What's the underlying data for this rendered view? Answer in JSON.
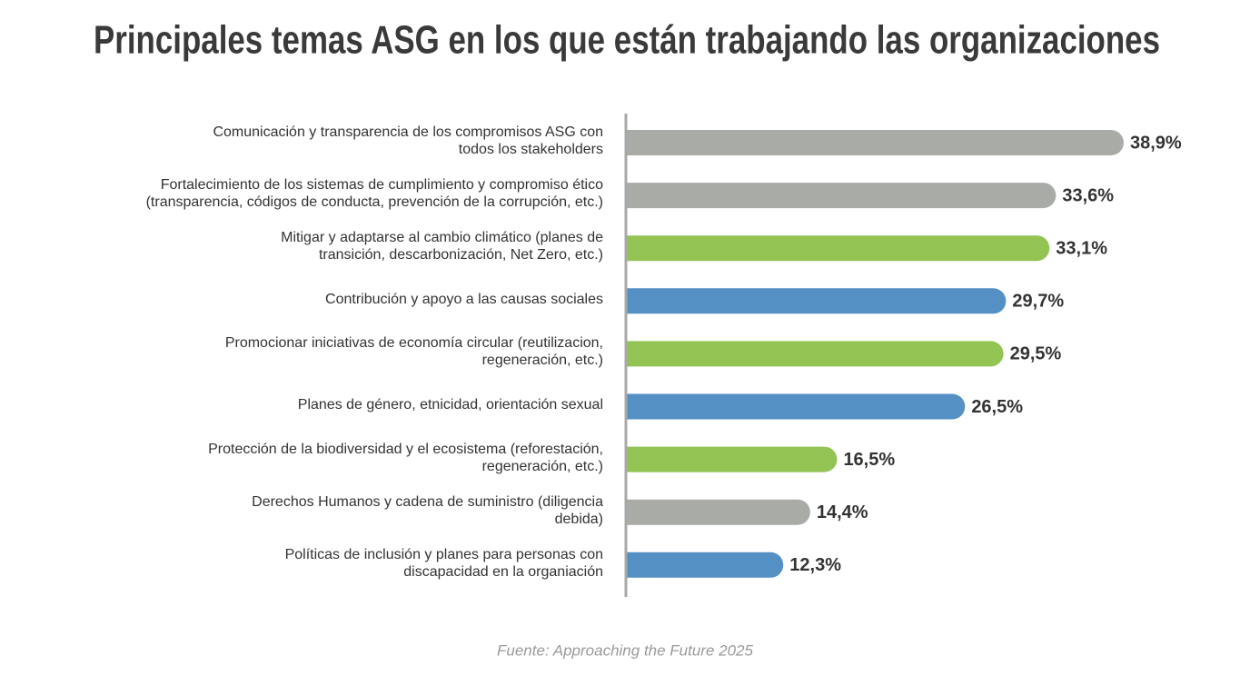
{
  "chart_data": {
    "type": "hbar",
    "title": "Principales temas ASG en los que están trabajando las organizaciones",
    "source": "Fuente: Approaching the Future 2025",
    "categories": [
      "Comunicación y transparencia de los compromisos ASG con\ntodos los stakeholders",
      "Fortalecimiento de los sistemas de cumplimiento y compromiso ético\n(transparencia, códigos de conducta, prevención de la corrupción, etc.)",
      "Mitigar y adaptarse al cambio climático (planes de\ntransición, descarbonización, Net Zero, etc.)",
      "Contribución y apoyo a las causas sociales",
      "Promocionar iniciativas de economía circular (reutilizacion,\nregeneración, etc.)",
      "Planes de género, etnicidad, orientación sexual",
      "Protección de la biodiversidad y el ecosistema (reforestación,\nregeneración, etc.)",
      "Derechos Humanos y cadena de suministro (diligencia\ndebida)",
      "Políticas de inclusión y planes para personas con\ndiscapacidad en la organiación"
    ],
    "values": [
      38.9,
      33.6,
      33.1,
      29.7,
      29.5,
      26.5,
      16.5,
      14.4,
      12.3
    ],
    "value_labels": [
      "38,9%",
      "33,6%",
      "33,1%",
      "29,7%",
      "29,5%",
      "26,5%",
      "16,5%",
      "14,4%",
      "12,3%"
    ],
    "colors": [
      "#a9aba7",
      "#a9aba7",
      "#93c353",
      "#5490c4",
      "#93c353",
      "#5490c4",
      "#93c353",
      "#a9aba7",
      "#5490c4"
    ]
  }
}
